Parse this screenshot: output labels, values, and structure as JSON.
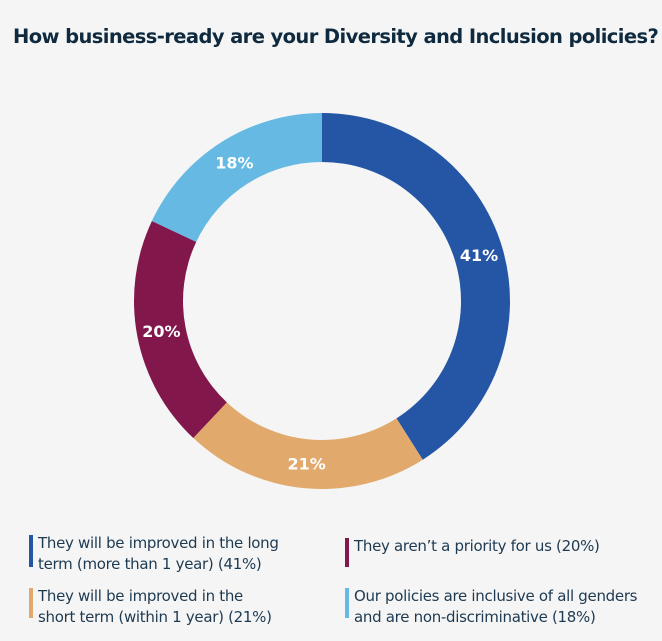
{
  "chart_data": {
    "type": "pie",
    "variant": "donut",
    "title": "How business-ready are your Diversity and Inclusion policies?",
    "slices": [
      {
        "label": "They will be improved in the long term (more than 1 year)",
        "value": 41,
        "display": "41%",
        "color": "#2556a6"
      },
      {
        "label": "They will be improved in the short term (within 1 year)",
        "value": 21,
        "display": "21%",
        "color": "#e2a96c"
      },
      {
        "label": "They aren’t a priority for us",
        "value": 20,
        "display": "20%",
        "color": "#82174b"
      },
      {
        "label": "Our policies are inclusive of all genders and are non-discriminative",
        "value": 18,
        "display": "18%",
        "color": "#65b9e2"
      }
    ],
    "start": "top",
    "direction": "clockwise",
    "legend_position": "bottom"
  },
  "legend": [
    {
      "line1": "They will be improved in the long",
      "line2": "term (more than 1 year) (41%)",
      "color": "#2556a6"
    },
    {
      "line1": "They aren’t a priority for us (20%)",
      "line2": "",
      "color": "#82174b"
    },
    {
      "line1": "They will be improved in the",
      "line2": "short term (within 1 year) (21%)",
      "color": "#e2a96c"
    },
    {
      "line1": "Our policies are inclusive of all genders",
      "line2": "and are non-discriminative (18%)",
      "color": "#65b9e2"
    }
  ]
}
